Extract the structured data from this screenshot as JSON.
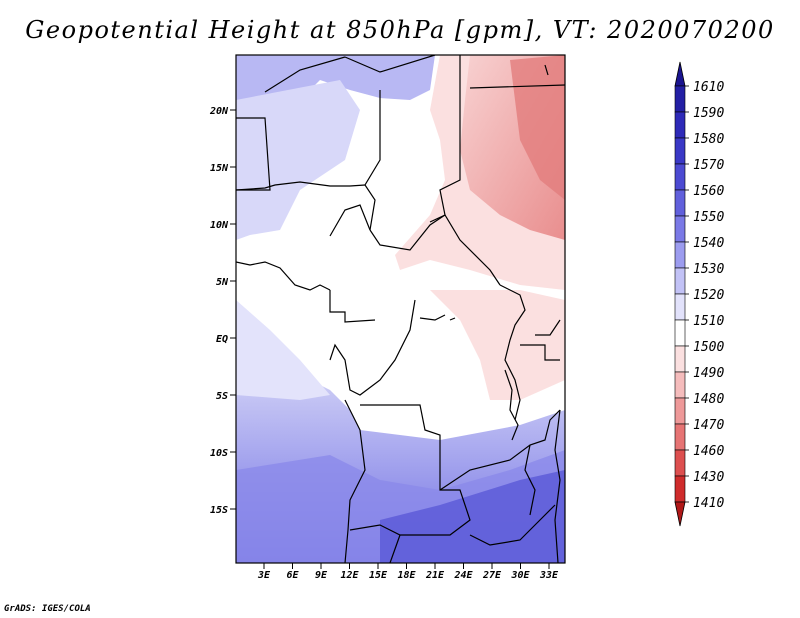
{
  "title": "Geopotential Height at 850hPa [gpm], VT: 2020070200",
  "credit": "GrADS: IGES/COLA",
  "map": {
    "lat_labels": [
      "20N",
      "15N",
      "10N",
      "5N",
      "EQ",
      "5S",
      "10S",
      "15S"
    ],
    "lon_labels": [
      "3E",
      "6E",
      "9E",
      "12E",
      "15E",
      "18E",
      "21E",
      "24E",
      "27E",
      "30E",
      "33E"
    ]
  },
  "colorbar": {
    "levels": [
      "1610",
      "1590",
      "1580",
      "1570",
      "1560",
      "1550",
      "1540",
      "1530",
      "1520",
      "1510",
      "1500",
      "1490",
      "1480",
      "1470",
      "1460",
      "1430",
      "1410"
    ],
    "colors": [
      "#1a1490",
      "#231fa4",
      "#2e2ab8",
      "#3a38c6",
      "#4c4ad2",
      "#6160dc",
      "#7a79e6",
      "#9c9cef",
      "#c2c2f6",
      "#e2e2fb",
      "#ffffff",
      "#fbe0e0",
      "#f5bcbc",
      "#ee9999",
      "#e67474",
      "#dd4f4f",
      "#cf2c2c",
      "#b01818"
    ]
  }
}
